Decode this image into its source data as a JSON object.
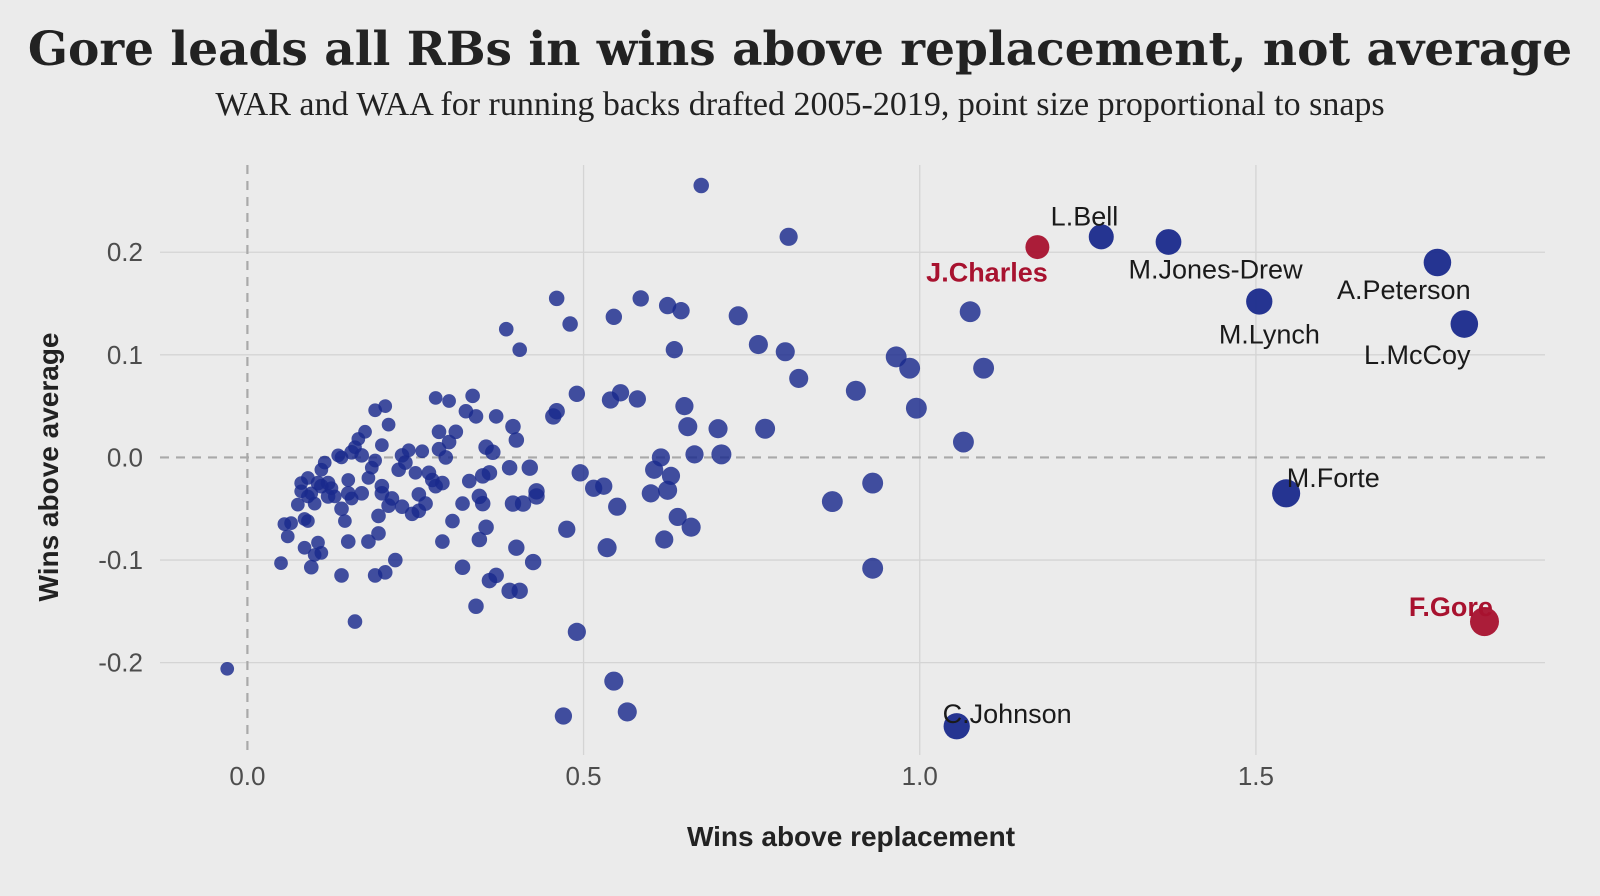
{
  "chart_data": {
    "type": "scatter",
    "title": "Gore leads all RBs in wins above replacement, not average",
    "subtitle": "WAR and WAA for running backs drafted 2005-2019, point size proportional to snaps",
    "xlabel": "Wins above replacement",
    "ylabel": "Wins above average",
    "xlim": [
      -0.13,
      1.93
    ],
    "ylim": [
      -0.29,
      0.285
    ],
    "x_ticks": [
      0.0,
      0.5,
      1.0,
      1.5
    ],
    "x_tick_labels": [
      "0.0",
      "0.5",
      "1.0",
      "1.5"
    ],
    "y_ticks": [
      0.2,
      0.1,
      0.0,
      -0.1,
      -0.2
    ],
    "y_tick_labels": [
      "0.2",
      "0.1",
      "0.0",
      "-0.1",
      "-0.2"
    ],
    "grid": true,
    "reference_lines": {
      "x": 0,
      "y": 0,
      "style": "dashed"
    },
    "colors": {
      "default_point": "#1a2a8c",
      "highlight_point": "#a8122f",
      "background": "#ebebeb",
      "grid": "#d4d4d4",
      "reference_line": "#a9a9a9"
    },
    "labeled_points": [
      {
        "label": "L.Bell",
        "x": 1.27,
        "y": 0.215,
        "size": 0.78,
        "highlight": false
      },
      {
        "label": "M.Jones-Drew",
        "x": 1.37,
        "y": 0.21,
        "size": 0.82,
        "highlight": false
      },
      {
        "label": "J.Charles",
        "x": 1.175,
        "y": 0.205,
        "size": 0.72,
        "highlight": true
      },
      {
        "label": "A.Peterson",
        "x": 1.77,
        "y": 0.19,
        "size": 0.92,
        "highlight": false
      },
      {
        "label": "M.Lynch",
        "x": 1.505,
        "y": 0.152,
        "size": 0.85,
        "highlight": false
      },
      {
        "label": "L.McCoy",
        "x": 1.81,
        "y": 0.13,
        "size": 0.92,
        "highlight": false
      },
      {
        "label": "M.Forte",
        "x": 1.545,
        "y": -0.035,
        "size": 0.95,
        "highlight": false
      },
      {
        "label": "F.Gore",
        "x": 1.84,
        "y": -0.16,
        "size": 1.0,
        "highlight": true
      },
      {
        "label": "C.Johnson",
        "x": 1.055,
        "y": -0.262,
        "size": 0.85,
        "highlight": false
      }
    ],
    "points": [
      [
        -0.03,
        -0.206,
        0.15
      ],
      [
        0.05,
        -0.103,
        0.15
      ],
      [
        0.055,
        -0.065,
        0.15
      ],
      [
        0.06,
        -0.077,
        0.15
      ],
      [
        0.065,
        -0.064,
        0.15
      ],
      [
        0.075,
        -0.046,
        0.15
      ],
      [
        0.08,
        -0.025,
        0.15
      ],
      [
        0.08,
        -0.033,
        0.15
      ],
      [
        0.085,
        -0.06,
        0.15
      ],
      [
        0.085,
        -0.088,
        0.15
      ],
      [
        0.09,
        -0.062,
        0.15
      ],
      [
        0.09,
        -0.038,
        0.15
      ],
      [
        0.09,
        -0.02,
        0.15
      ],
      [
        0.095,
        -0.035,
        0.15
      ],
      [
        0.095,
        -0.107,
        0.2
      ],
      [
        0.1,
        -0.095,
        0.15
      ],
      [
        0.1,
        -0.045,
        0.15
      ],
      [
        0.105,
        -0.025,
        0.2
      ],
      [
        0.105,
        -0.083,
        0.15
      ],
      [
        0.11,
        -0.012,
        0.15
      ],
      [
        0.11,
        -0.028,
        0.2
      ],
      [
        0.11,
        -0.093,
        0.15
      ],
      [
        0.115,
        -0.005,
        0.15
      ],
      [
        0.12,
        -0.038,
        0.2
      ],
      [
        0.12,
        -0.025,
        0.2
      ],
      [
        0.125,
        -0.03,
        0.15
      ],
      [
        0.13,
        -0.038,
        0.15
      ],
      [
        0.135,
        0.002,
        0.15
      ],
      [
        0.14,
        -0.05,
        0.2
      ],
      [
        0.14,
        0.0,
        0.15
      ],
      [
        0.14,
        -0.115,
        0.2
      ],
      [
        0.145,
        -0.062,
        0.15
      ],
      [
        0.15,
        -0.022,
        0.15
      ],
      [
        0.15,
        -0.035,
        0.2
      ],
      [
        0.15,
        -0.082,
        0.2
      ],
      [
        0.155,
        0.005,
        0.2
      ],
      [
        0.155,
        -0.04,
        0.15
      ],
      [
        0.16,
        -0.16,
        0.2
      ],
      [
        0.16,
        0.01,
        0.15
      ],
      [
        0.165,
        0.018,
        0.15
      ],
      [
        0.17,
        0.002,
        0.2
      ],
      [
        0.17,
        -0.035,
        0.2
      ],
      [
        0.175,
        0.025,
        0.15
      ],
      [
        0.18,
        -0.02,
        0.15
      ],
      [
        0.18,
        -0.082,
        0.2
      ],
      [
        0.185,
        -0.01,
        0.15
      ],
      [
        0.19,
        -0.003,
        0.15
      ],
      [
        0.19,
        -0.115,
        0.2
      ],
      [
        0.19,
        0.046,
        0.15
      ],
      [
        0.195,
        -0.057,
        0.2
      ],
      [
        0.195,
        -0.074,
        0.2
      ],
      [
        0.2,
        -0.028,
        0.2
      ],
      [
        0.2,
        0.012,
        0.15
      ],
      [
        0.2,
        -0.035,
        0.2
      ],
      [
        0.205,
        0.05,
        0.15
      ],
      [
        0.205,
        -0.112,
        0.2
      ],
      [
        0.21,
        -0.047,
        0.2
      ],
      [
        0.21,
        0.032,
        0.15
      ],
      [
        0.215,
        -0.04,
        0.2
      ],
      [
        0.22,
        -0.1,
        0.2
      ],
      [
        0.225,
        -0.012,
        0.2
      ],
      [
        0.23,
        -0.048,
        0.2
      ],
      [
        0.23,
        0.002,
        0.2
      ],
      [
        0.235,
        -0.005,
        0.2
      ],
      [
        0.24,
        0.007,
        0.15
      ],
      [
        0.245,
        -0.055,
        0.2
      ],
      [
        0.25,
        -0.015,
        0.15
      ],
      [
        0.255,
        -0.036,
        0.2
      ],
      [
        0.255,
        -0.052,
        0.2
      ],
      [
        0.26,
        0.006,
        0.15
      ],
      [
        0.265,
        -0.045,
        0.2
      ],
      [
        0.27,
        -0.015,
        0.2
      ],
      [
        0.275,
        -0.022,
        0.2
      ],
      [
        0.28,
        0.058,
        0.15
      ],
      [
        0.28,
        -0.028,
        0.2
      ],
      [
        0.285,
        0.025,
        0.2
      ],
      [
        0.285,
        0.008,
        0.2
      ],
      [
        0.29,
        -0.025,
        0.2
      ],
      [
        0.29,
        -0.082,
        0.2
      ],
      [
        0.295,
        0.0,
        0.2
      ],
      [
        0.3,
        0.015,
        0.2
      ],
      [
        0.3,
        0.055,
        0.15
      ],
      [
        0.305,
        -0.062,
        0.2
      ],
      [
        0.31,
        0.025,
        0.2
      ],
      [
        0.32,
        -0.045,
        0.2
      ],
      [
        0.32,
        -0.107,
        0.25
      ],
      [
        0.325,
        0.045,
        0.2
      ],
      [
        0.33,
        -0.023,
        0.2
      ],
      [
        0.335,
        0.06,
        0.2
      ],
      [
        0.34,
        0.04,
        0.2
      ],
      [
        0.34,
        -0.145,
        0.25
      ],
      [
        0.345,
        -0.08,
        0.25
      ],
      [
        0.345,
        -0.038,
        0.25
      ],
      [
        0.35,
        -0.018,
        0.25
      ],
      [
        0.35,
        -0.045,
        0.25
      ],
      [
        0.355,
        -0.068,
        0.25
      ],
      [
        0.355,
        0.01,
        0.25
      ],
      [
        0.36,
        -0.12,
        0.25
      ],
      [
        0.36,
        -0.015,
        0.25
      ],
      [
        0.365,
        0.005,
        0.25
      ],
      [
        0.37,
        -0.115,
        0.25
      ],
      [
        0.37,
        0.04,
        0.2
      ],
      [
        0.385,
        0.125,
        0.2
      ],
      [
        0.39,
        -0.01,
        0.25
      ],
      [
        0.39,
        -0.13,
        0.3
      ],
      [
        0.395,
        -0.045,
        0.3
      ],
      [
        0.395,
        0.03,
        0.25
      ],
      [
        0.4,
        -0.088,
        0.3
      ],
      [
        0.4,
        0.017,
        0.25
      ],
      [
        0.405,
        0.105,
        0.2
      ],
      [
        0.405,
        -0.13,
        0.3
      ],
      [
        0.41,
        -0.045,
        0.3
      ],
      [
        0.42,
        -0.01,
        0.3
      ],
      [
        0.425,
        -0.102,
        0.3
      ],
      [
        0.43,
        -0.038,
        0.3
      ],
      [
        0.43,
        -0.033,
        0.3
      ],
      [
        0.455,
        0.04,
        0.3
      ],
      [
        0.46,
        0.045,
        0.3
      ],
      [
        0.46,
        0.155,
        0.25
      ],
      [
        0.47,
        -0.252,
        0.35
      ],
      [
        0.475,
        -0.07,
        0.35
      ],
      [
        0.48,
        0.13,
        0.25
      ],
      [
        0.49,
        -0.17,
        0.4
      ],
      [
        0.49,
        0.062,
        0.3
      ],
      [
        0.495,
        -0.015,
        0.35
      ],
      [
        0.515,
        -0.03,
        0.35
      ],
      [
        0.53,
        -0.028,
        0.35
      ],
      [
        0.535,
        -0.088,
        0.45
      ],
      [
        0.54,
        0.056,
        0.35
      ],
      [
        0.545,
        -0.218,
        0.45
      ],
      [
        0.545,
        0.137,
        0.3
      ],
      [
        0.55,
        -0.048,
        0.4
      ],
      [
        0.555,
        0.063,
        0.35
      ],
      [
        0.565,
        -0.248,
        0.45
      ],
      [
        0.58,
        0.057,
        0.35
      ],
      [
        0.585,
        0.155,
        0.3
      ],
      [
        0.6,
        -0.035,
        0.4
      ],
      [
        0.605,
        -0.012,
        0.4
      ],
      [
        0.615,
        0.0,
        0.4
      ],
      [
        0.62,
        -0.08,
        0.4
      ],
      [
        0.625,
        0.148,
        0.35
      ],
      [
        0.625,
        -0.032,
        0.45
      ],
      [
        0.63,
        -0.018,
        0.4
      ],
      [
        0.635,
        0.105,
        0.35
      ],
      [
        0.64,
        -0.058,
        0.4
      ],
      [
        0.645,
        0.143,
        0.35
      ],
      [
        0.65,
        0.05,
        0.4
      ],
      [
        0.655,
        0.03,
        0.45
      ],
      [
        0.66,
        -0.068,
        0.45
      ],
      [
        0.665,
        0.003,
        0.4
      ],
      [
        0.675,
        0.265,
        0.25
      ],
      [
        0.7,
        0.028,
        0.45
      ],
      [
        0.705,
        0.003,
        0.5
      ],
      [
        0.73,
        0.138,
        0.45
      ],
      [
        0.76,
        0.11,
        0.45
      ],
      [
        0.77,
        0.028,
        0.5
      ],
      [
        0.8,
        0.103,
        0.45
      ],
      [
        0.805,
        0.215,
        0.4
      ],
      [
        0.82,
        0.077,
        0.45
      ],
      [
        0.87,
        -0.043,
        0.55
      ],
      [
        0.905,
        0.065,
        0.5
      ],
      [
        0.93,
        -0.025,
        0.55
      ],
      [
        0.93,
        -0.108,
        0.55
      ],
      [
        0.965,
        0.098,
        0.55
      ],
      [
        0.985,
        0.087,
        0.55
      ],
      [
        0.995,
        0.048,
        0.55
      ],
      [
        1.065,
        0.015,
        0.55
      ],
      [
        1.075,
        0.142,
        0.55
      ],
      [
        1.095,
        0.087,
        0.55
      ]
    ],
    "labels": [
      {
        "text": "L.Bell",
        "x": 1.245,
        "y": 0.235,
        "anchor": "middle",
        "highlight": false
      },
      {
        "text": "M.Jones-Drew",
        "x": 1.44,
        "y": 0.183,
        "anchor": "middle",
        "highlight": false
      },
      {
        "text": "J.Charles",
        "x": 1.1,
        "y": 0.18,
        "anchor": "middle",
        "highlight": true
      },
      {
        "text": "A.Peterson",
        "x": 1.72,
        "y": 0.163,
        "anchor": "middle",
        "highlight": false
      },
      {
        "text": "M.Lynch",
        "x": 1.52,
        "y": 0.12,
        "anchor": "middle",
        "highlight": false
      },
      {
        "text": "L.McCoy",
        "x": 1.74,
        "y": 0.1,
        "anchor": "middle",
        "highlight": false
      },
      {
        "text": "M.Forte",
        "x": 1.615,
        "y": -0.02,
        "anchor": "middle",
        "highlight": false
      },
      {
        "text": "F.Gore",
        "x": 1.79,
        "y": -0.146,
        "anchor": "middle",
        "highlight": true
      },
      {
        "text": "C.Johnson",
        "x": 1.13,
        "y": -0.25,
        "anchor": "middle",
        "highlight": false
      }
    ]
  }
}
